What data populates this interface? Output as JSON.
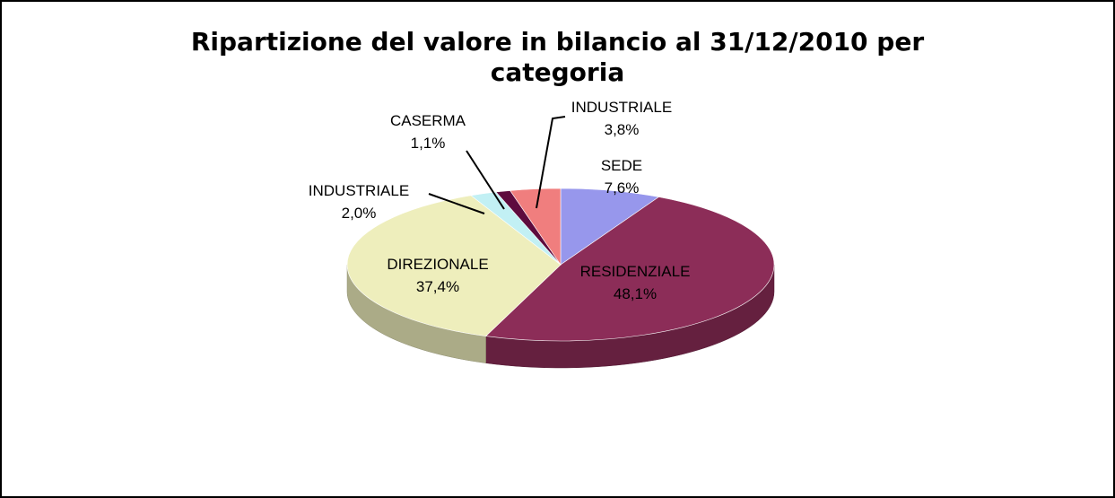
{
  "chart_data": {
    "type": "pie",
    "title": "Ripartizione del valore in bilancio al 31/12/2010 per categoria",
    "categories": [
      "SEDE",
      "RESIDENZIALE",
      "DIREZIONALE",
      "INDUSTRIALE",
      "CASERMA",
      "INDUSTRIALE"
    ],
    "values": [
      7.6,
      48.1,
      37.4,
      2.0,
      1.1,
      3.8
    ],
    "value_labels": [
      "7,6%",
      "48,1%",
      "37,4%",
      "2,0%",
      "1,1%",
      "3,8%"
    ],
    "colors": [
      "#9797ec",
      "#8c2d58",
      "#eeeebc",
      "#c2f0f4",
      "#5e0b3e",
      "#f07e7e"
    ]
  }
}
